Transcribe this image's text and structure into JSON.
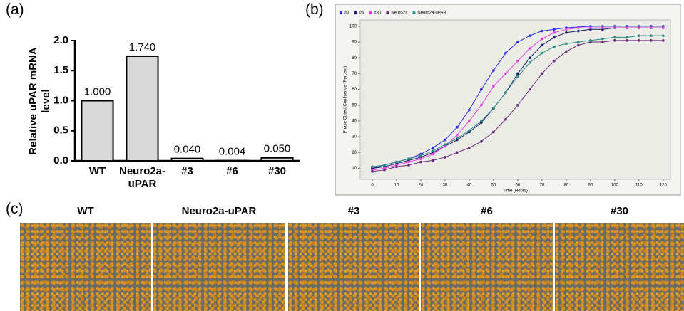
{
  "panel_labels": [
    "(a)",
    "(b)",
    "(c)"
  ],
  "chart_data": [
    {
      "type": "bar",
      "ylabel": "Relative uPAR mRNA level",
      "categories": [
        "WT",
        "Neuro2a-uPAR",
        "#3",
        "#6",
        "#30"
      ],
      "values": [
        1.0,
        1.74,
        0.04,
        0.004,
        0.05
      ],
      "value_labels": [
        "1.000",
        "1.740",
        "0.040",
        "0.004",
        "0.050"
      ],
      "color": "#d9d9d9",
      "ylim": [
        0,
        2
      ],
      "yticks": [
        {
          "value": 0,
          "label": "0.0"
        },
        {
          "value": 0.5,
          "label": "0.5"
        },
        {
          "value": 1,
          "label": "1.0"
        },
        {
          "value": 1.5,
          "label": "1.5"
        },
        {
          "value": 2,
          "label": "2.0"
        }
      ]
    },
    {
      "type": "line",
      "xlabel": "Time (Hours)",
      "ylabel": "Phase Object Confluence (Percent)",
      "x": [
        0,
        5,
        10,
        15,
        20,
        25,
        30,
        35,
        40,
        45,
        50,
        55,
        60,
        65,
        70,
        75,
        80,
        85,
        90,
        95,
        100,
        105,
        110,
        115,
        120
      ],
      "series": [
        {
          "name": "#3",
          "color": "#2b2bdf",
          "values": [
            10,
            12,
            14,
            16,
            19,
            23,
            28,
            36,
            47,
            60,
            72,
            83,
            90,
            94,
            97,
            98,
            99,
            99.5,
            100,
            100,
            100,
            100,
            100,
            100,
            100
          ]
        },
        {
          "name": "#6",
          "color": "#1a1a6e",
          "values": [
            10,
            11,
            13,
            15,
            17,
            20,
            24,
            28,
            33,
            39,
            48,
            58,
            70,
            80,
            88,
            93,
            96,
            97,
            98,
            98,
            99,
            99,
            99,
            99,
            99
          ]
        },
        {
          "name": "#30",
          "color": "#e040e0",
          "values": [
            9,
            10,
            12,
            14,
            16,
            19,
            24,
            31,
            40,
            50,
            62,
            70,
            78,
            86,
            92,
            96,
            98,
            99,
            99,
            99,
            99,
            99,
            99,
            99,
            99
          ]
        },
        {
          "name": "Neuro2a",
          "color": "#6a2a7a",
          "values": [
            8,
            9,
            11,
            12,
            14,
            15,
            17,
            20,
            23,
            27,
            33,
            41,
            50,
            60,
            70,
            78,
            84,
            88,
            90,
            90,
            91,
            91,
            91,
            91,
            91
          ]
        },
        {
          "name": "Neuro2a-uPAR",
          "color": "#2a8a80",
          "values": [
            11,
            12,
            14,
            16,
            18,
            21,
            25,
            29,
            34,
            40,
            48,
            58,
            68,
            77,
            83,
            87,
            89,
            90,
            91,
            92,
            93,
            93,
            94,
            94,
            94
          ]
        }
      ],
      "xlim": [
        -5,
        123
      ],
      "xticks": [
        0,
        10,
        20,
        30,
        40,
        50,
        60,
        70,
        80,
        90,
        100,
        110,
        120
      ],
      "ylim": [
        3,
        104
      ],
      "yticks": [
        10,
        20,
        30,
        40,
        50,
        60,
        70,
        80,
        90,
        100
      ]
    }
  ],
  "image_titles": [
    "WT",
    "Neuro2a-uPAR",
    "#3",
    "#6",
    "#30"
  ]
}
